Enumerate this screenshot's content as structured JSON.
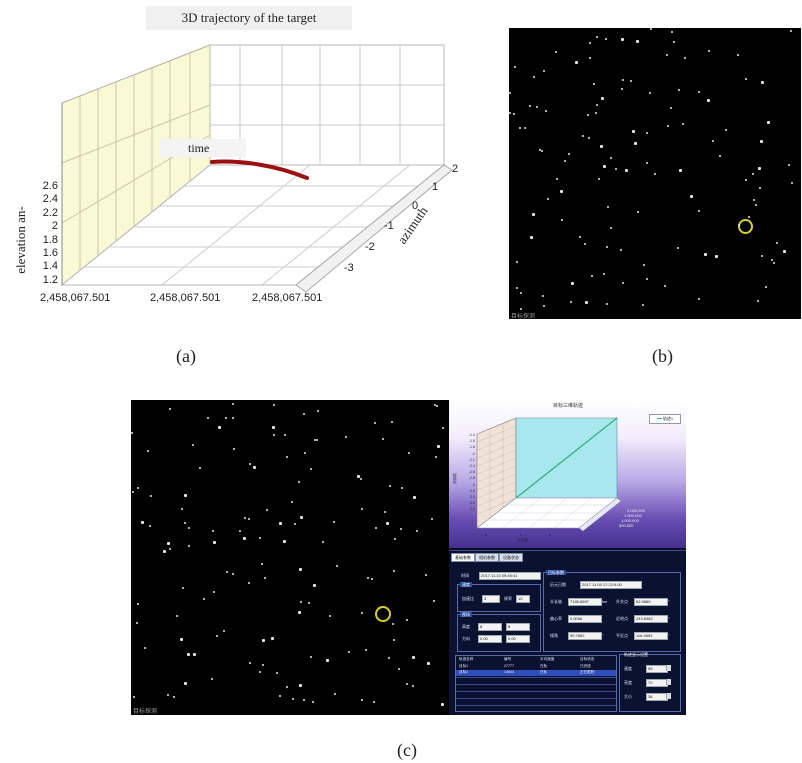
{
  "panel_a": {
    "title": "3D trajectory of the target",
    "time_label": "time",
    "axis_z_label": "elevation an-",
    "axis_azimuth_label": "azimuth",
    "z_ticks": [
      "2.6",
      "2.4",
      "2.2",
      "2",
      "1.8",
      "1.6",
      "1.4",
      "1.2"
    ],
    "azimuth_ticks": [
      "2",
      "1",
      "0",
      "-1",
      "-2",
      "-3"
    ],
    "time_ticks": [
      "2,458,067.501",
      "2,458,067.501",
      "2,458,067.501"
    ],
    "trajectory_color": "#9b1010",
    "wall_color": "#fbf8d6"
  },
  "panel_b": {
    "corner_label": "目标探测",
    "ring_color": "#d6cf36"
  },
  "panel_c": {
    "corner_label": "目标探测",
    "chart_title": "目标三维轨迹",
    "legend_label": "轨迹1",
    "z_ticks": [
      "-1.4",
      "-1.6",
      "-1.8",
      "-2",
      "-2.2",
      "-2.4",
      "-2.6",
      "-2.8",
      "-3",
      "-3.2",
      "-3.4",
      "-3.6",
      "-3.8"
    ],
    "x_ticks": [
      "0",
      "1",
      "2"
    ],
    "x_axis_label": "方位角",
    "y_ticks": [
      "2,000,000",
      "1,500,000",
      "1,000,000",
      "500,000"
    ],
    "z_axis_label": "俯仰角",
    "tabs": [
      "基础参数",
      "相机参数",
      "设备状态"
    ],
    "time_label": "时间",
    "time_value": "2017.11.10 09:45:41",
    "orbit_group": "目标参数",
    "epoch_label": "历元日期",
    "epoch_value": "2017.11.09 17:22:9.00",
    "fields": [
      {
        "label": "半长轴",
        "value": "7195.6597",
        "unit": "km"
      },
      {
        "label": "升交点",
        "value": "62.9680",
        "unit": "°"
      },
      {
        "label": "偏心率",
        "value": "0.0006",
        "unit": ""
      },
      {
        "label": "近地点",
        "value": "243.6082",
        "unit": "°"
      },
      {
        "label": "倾角",
        "value": "99.7862",
        "unit": "°"
      },
      {
        "label": "平近点",
        "value": "116.4593",
        "unit": "°"
      }
    ],
    "camera_group_1": "速度",
    "accel_label": "加速比",
    "accel_value": "3",
    "fps_label": "帧率",
    "fps_value": "10",
    "camera_group_2": "视场",
    "height_label": "高度",
    "height_value": "8",
    "height_value2": "8",
    "dir_label": "方向",
    "dir_value": "0.00",
    "dir_value2": "0.00",
    "table_headers": [
      "轨迹名称",
      "编号",
      "平均速度",
      "目标状态"
    ],
    "table_rows": [
      [
        "目标1",
        "27777",
        "在轨",
        "已完成"
      ],
      [
        "目标2",
        "14644",
        "在轨",
        "正在跟踪"
      ]
    ],
    "display_group": "轨迹显示设置",
    "display_rows": [
      {
        "label": "速度",
        "value": "55"
      },
      {
        "label": "亮度",
        "value": "70"
      },
      {
        "label": "大小",
        "value": "38"
      }
    ],
    "ring_color": "#d6cf36"
  },
  "captions": {
    "a": "(a)",
    "b": "(b)",
    "c": "(c)"
  }
}
